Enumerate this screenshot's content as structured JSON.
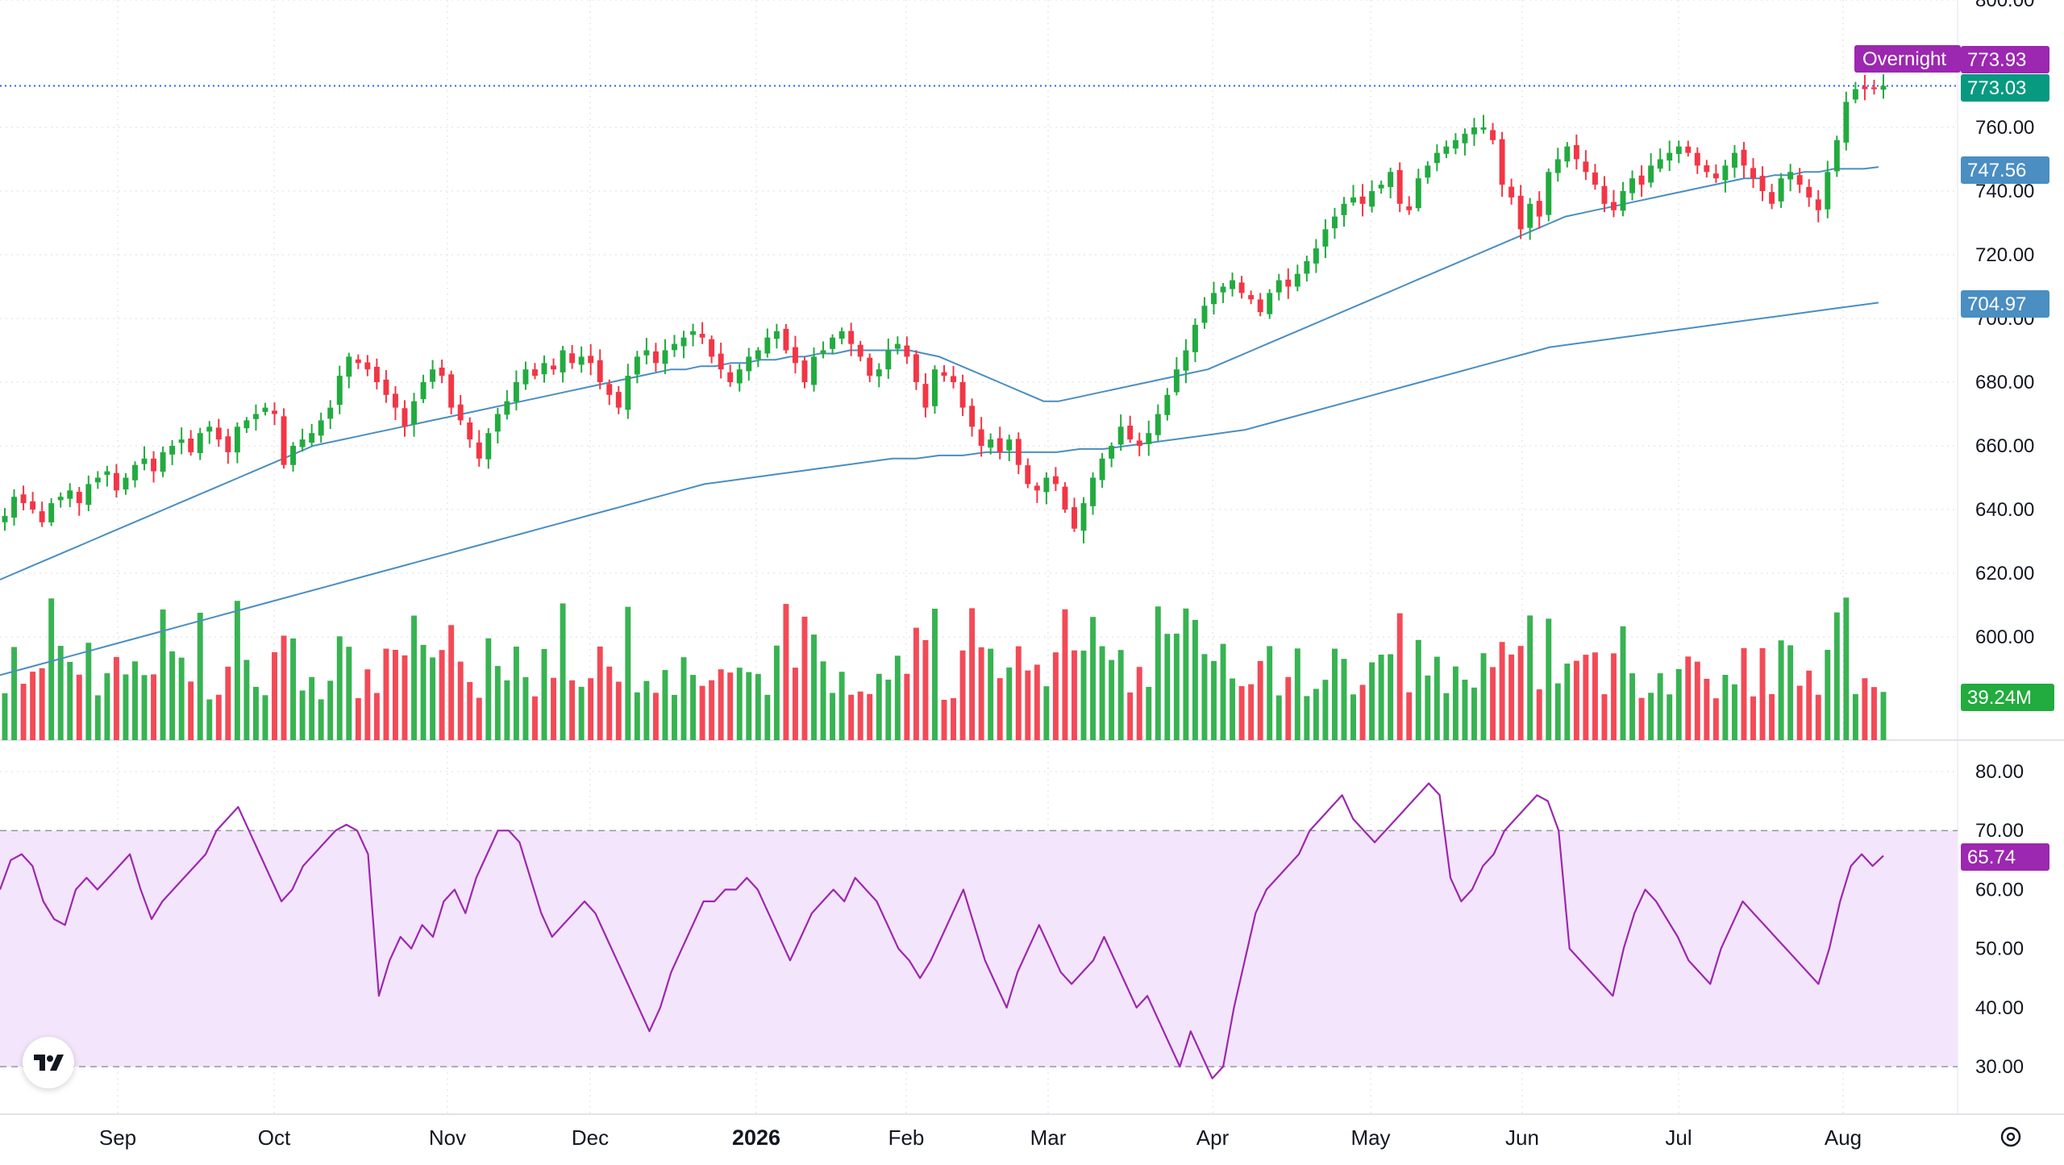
{
  "chart_data": [
    {
      "type": "candlestick",
      "title": "",
      "ylim": [
        600,
        800
      ],
      "price_axis_ticks": [
        "800.00",
        "760.00",
        "740.00",
        "720.00",
        "700.00",
        "680.00",
        "660.00",
        "640.00",
        "620.00",
        "600.00"
      ],
      "time_axis_labels": [
        {
          "label": "Sep",
          "bold": false
        },
        {
          "label": "Oct",
          "bold": false
        },
        {
          "label": "Nov",
          "bold": false
        },
        {
          "label": "Dec",
          "bold": false
        },
        {
          "label": "2026",
          "bold": true
        },
        {
          "label": "Feb",
          "bold": false
        },
        {
          "label": "Mar",
          "bold": false
        },
        {
          "label": "Apr",
          "bold": false
        },
        {
          "label": "May",
          "bold": false
        },
        {
          "label": "Jun",
          "bold": false
        },
        {
          "label": "Jul",
          "bold": false
        },
        {
          "label": "Aug",
          "bold": false
        }
      ],
      "close_series": [
        638,
        644,
        642,
        640,
        636,
        642,
        644,
        646,
        642,
        648,
        650,
        652,
        646,
        650,
        654,
        656,
        652,
        658,
        660,
        662,
        658,
        664,
        666,
        662,
        658,
        666,
        668,
        670,
        672,
        670,
        654,
        660,
        662,
        664,
        668,
        672,
        682,
        688,
        686,
        684,
        680,
        676,
        672,
        666,
        674,
        680,
        684,
        682,
        672,
        668,
        662,
        656,
        664,
        670,
        674,
        680,
        684,
        682,
        686,
        684,
        690,
        686,
        688,
        686,
        680,
        676,
        672,
        682,
        688,
        690,
        686,
        690,
        692,
        694,
        696,
        694,
        688,
        684,
        680,
        684,
        688,
        690,
        694,
        696,
        690,
        686,
        680,
        688,
        690,
        694,
        696,
        692,
        688,
        682,
        684,
        690,
        692,
        688,
        680,
        672,
        684,
        682,
        680,
        672,
        666,
        660,
        662,
        658,
        662,
        654,
        648,
        646,
        650,
        648,
        640,
        634,
        642,
        650,
        656,
        660,
        666,
        662,
        660,
        664,
        670,
        676,
        684,
        690,
        698,
        704,
        708,
        710,
        712,
        708,
        706,
        702,
        708,
        712,
        710,
        714,
        718,
        722,
        728,
        732,
        736,
        738,
        736,
        740,
        742,
        746,
        736,
        734,
        744,
        748,
        752,
        754,
        756,
        758,
        760,
        760,
        756,
        742,
        738,
        728,
        736,
        732,
        746,
        750,
        754,
        750,
        746,
        742,
        736,
        734,
        740,
        744,
        742,
        748,
        750,
        752,
        754,
        752,
        748,
        746,
        744,
        748,
        752,
        748,
        744,
        740,
        736,
        744,
        746,
        742,
        738,
        734,
        746,
        756,
        768,
        772,
        772,
        772,
        773.03
      ],
      "ma_50": [
        618,
        620,
        622,
        624,
        626,
        628,
        630,
        632,
        634,
        636,
        638,
        640,
        642,
        644,
        646,
        648,
        650,
        652,
        654,
        656,
        658,
        660,
        661,
        662,
        663,
        664,
        665,
        666,
        667,
        668,
        669,
        670,
        671,
        672,
        673,
        674,
        675,
        676,
        677,
        678,
        679,
        680,
        681,
        682,
        683,
        684,
        684,
        685,
        685,
        686,
        686,
        687,
        687,
        688,
        688,
        689,
        689,
        690,
        690,
        690,
        690,
        690,
        689,
        688,
        686,
        684,
        682,
        680,
        678,
        676,
        674,
        674,
        675,
        676,
        677,
        678,
        679,
        680,
        681,
        682,
        683,
        684,
        686,
        688,
        690,
        692,
        694,
        696,
        698,
        700,
        702,
        704,
        706,
        708,
        710,
        712,
        714,
        716,
        718,
        720,
        722,
        724,
        726,
        728,
        730,
        732,
        733,
        734,
        735,
        736,
        737,
        738,
        739,
        740,
        741,
        742,
        743,
        744,
        744,
        745,
        745,
        746,
        746,
        747,
        747,
        747,
        747.56
      ],
      "ma_200": [
        588,
        590,
        592,
        594,
        596,
        598,
        600,
        602,
        604,
        606,
        608,
        610,
        612,
        614,
        616,
        618,
        620,
        622,
        624,
        626,
        628,
        630,
        632,
        634,
        636,
        638,
        640,
        642,
        644,
        646,
        648,
        649,
        650,
        651,
        652,
        653,
        654,
        655,
        656,
        656,
        657,
        657,
        658,
        658,
        658,
        658,
        659,
        659,
        660,
        661,
        662,
        663,
        664,
        665,
        667,
        669,
        671,
        673,
        675,
        677,
        679,
        681,
        683,
        685,
        687,
        689,
        691,
        692,
        693,
        694,
        695,
        696,
        697,
        698,
        699,
        700,
        701,
        702,
        703,
        704,
        704.97
      ],
      "volume": {
        "last_label": "39.24M"
      },
      "price_tags": [
        {
          "label": "Overnight",
          "value": "773.93",
          "color": "#9c27b0"
        },
        {
          "label": "",
          "value": "773.03",
          "color": "#089981"
        },
        {
          "label": "",
          "value": "747.56",
          "color": "#4a8ec2"
        },
        {
          "label": "",
          "value": "704.97",
          "color": "#4a8ec2"
        },
        {
          "label": "",
          "value": "39.24M",
          "color": "#22ab3f"
        }
      ]
    },
    {
      "type": "line",
      "title": "",
      "ylim": [
        27,
        82
      ],
      "axis_ticks": [
        "80.00",
        "70.00",
        "60.00",
        "50.00",
        "40.00",
        "30.00"
      ],
      "band": [
        30,
        70
      ],
      "values": [
        60,
        65,
        66,
        64,
        58,
        55,
        54,
        60,
        62,
        60,
        62,
        64,
        66,
        60,
        55,
        58,
        60,
        62,
        64,
        66,
        70,
        72,
        74,
        70,
        66,
        62,
        58,
        60,
        64,
        66,
        68,
        70,
        71,
        70,
        66,
        42,
        48,
        52,
        50,
        54,
        52,
        58,
        60,
        56,
        62,
        66,
        70,
        70,
        68,
        62,
        56,
        52,
        54,
        56,
        58,
        56,
        52,
        48,
        44,
        40,
        36,
        40,
        46,
        50,
        54,
        58,
        58,
        60,
        60,
        62,
        60,
        56,
        52,
        48,
        52,
        56,
        58,
        60,
        58,
        62,
        60,
        58,
        54,
        50,
        48,
        45,
        48,
        52,
        56,
        60,
        54,
        48,
        44,
        40,
        46,
        50,
        54,
        50,
        46,
        44,
        46,
        48,
        52,
        48,
        44,
        40,
        42,
        38,
        34,
        30,
        36,
        32,
        28,
        30,
        40,
        48,
        56,
        60,
        62,
        64,
        66,
        70,
        72,
        74,
        76,
        72,
        70,
        68,
        70,
        72,
        74,
        76,
        78,
        76,
        62,
        58,
        60,
        64,
        66,
        70,
        72,
        74,
        76,
        75,
        70,
        50,
        48,
        46,
        44,
        42,
        50,
        56,
        60,
        58,
        55,
        52,
        48,
        46,
        44,
        50,
        54,
        58,
        56,
        54,
        52,
        50,
        48,
        46,
        44,
        50,
        58,
        64,
        66,
        64,
        65.74
      ],
      "value_tag": {
        "value": "65.74",
        "color": "#9c27b0"
      }
    }
  ],
  "colors": {
    "up": "#22ab3f",
    "down": "#f23645",
    "ma": "#4a8ec2",
    "rsi_line": "#9c27b0",
    "rsi_band": "#f3e5fb",
    "grid": "#e8e9ed",
    "last_price_line": "#2962ff"
  },
  "icons": {
    "logo": "tradingview-logo-icon",
    "settings": "gear-icon"
  }
}
